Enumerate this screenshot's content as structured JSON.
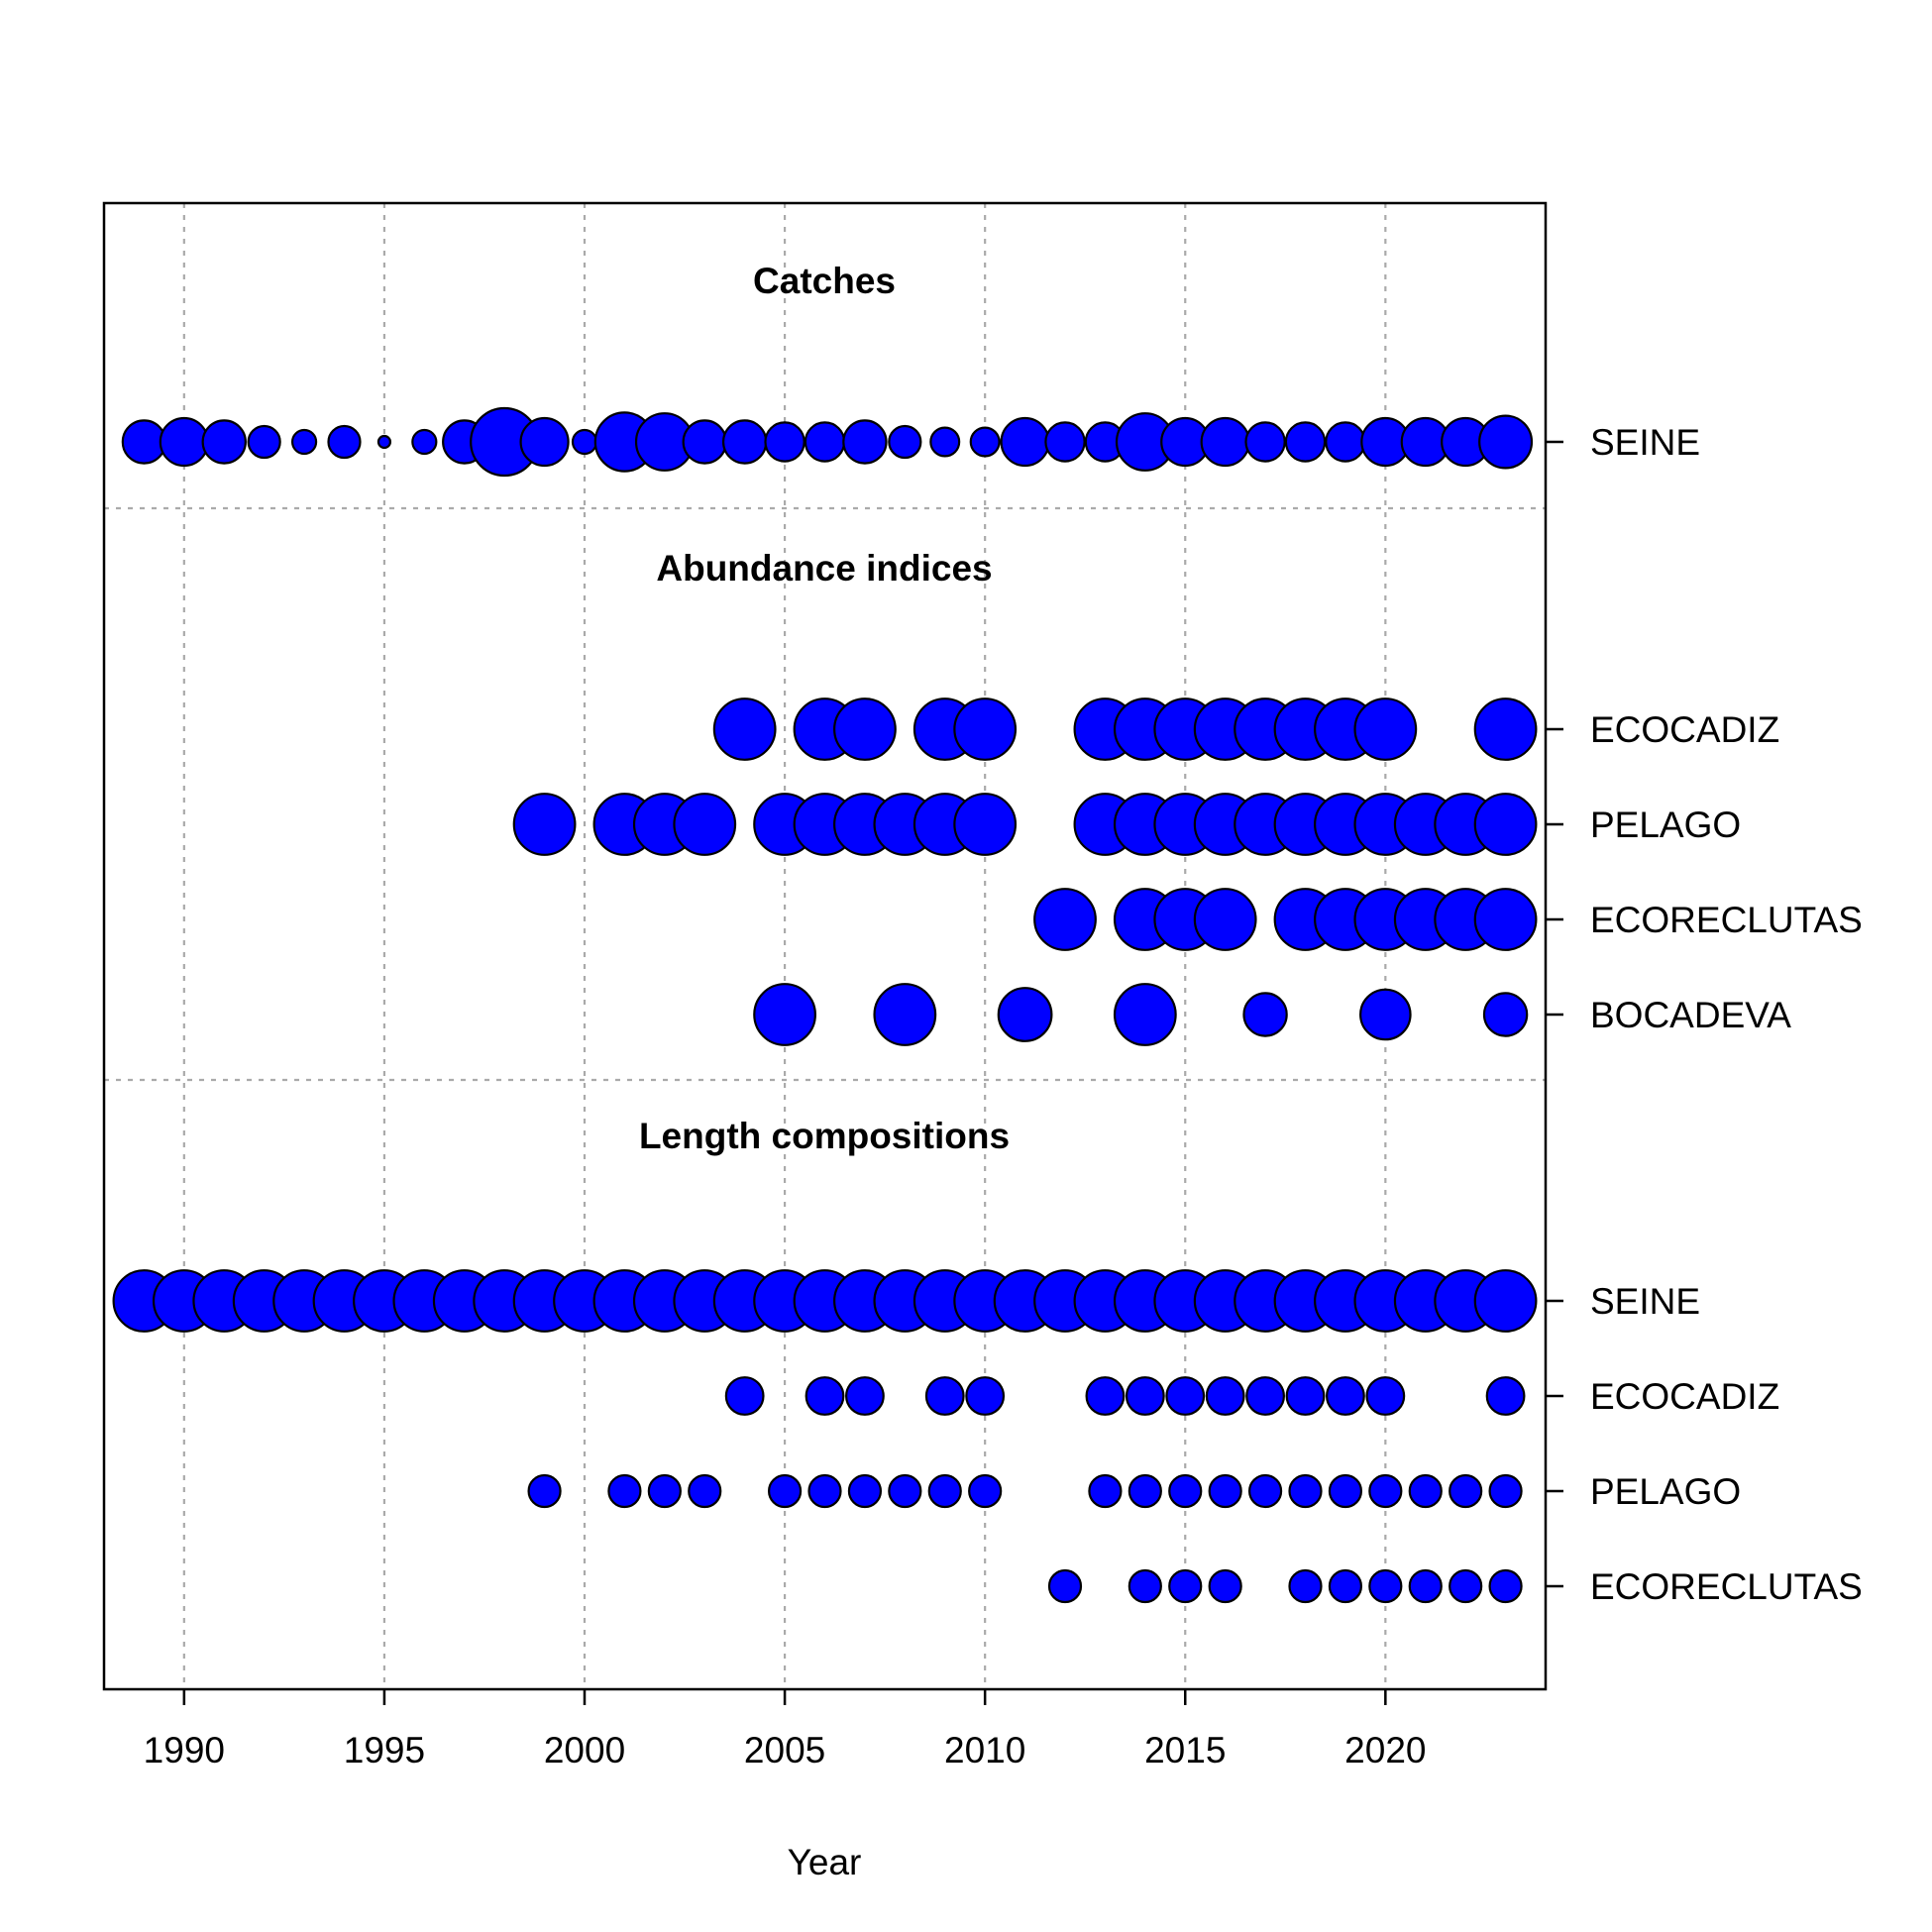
{
  "chart_data": {
    "type": "scatter",
    "xlabel": "Year",
    "xlim": [
      1988,
      2024
    ],
    "x_ticks": [
      1990,
      1995,
      2000,
      2005,
      2010,
      2015,
      2020
    ],
    "grid": true,
    "bubble_color": "#0000FF",
    "panels": [
      {
        "title": "Catches",
        "rows": [
          {
            "label": "SEINE",
            "points": [
              {
                "x": 1989,
                "size": 0.54
              },
              {
                "x": 1990,
                "size": 0.6
              },
              {
                "x": 1991,
                "size": 0.54
              },
              {
                "x": 1992,
                "size": 0.4
              },
              {
                "x": 1993,
                "size": 0.3
              },
              {
                "x": 1994,
                "size": 0.4
              },
              {
                "x": 1995,
                "size": 0.15
              },
              {
                "x": 1996,
                "size": 0.3
              },
              {
                "x": 1997,
                "size": 0.54
              },
              {
                "x": 1998,
                "size": 0.85
              },
              {
                "x": 1999,
                "size": 0.6
              },
              {
                "x": 2000,
                "size": 0.3
              },
              {
                "x": 2001,
                "size": 0.74
              },
              {
                "x": 2002,
                "size": 0.72
              },
              {
                "x": 2003,
                "size": 0.54
              },
              {
                "x": 2004,
                "size": 0.54
              },
              {
                "x": 2005,
                "size": 0.49
              },
              {
                "x": 2006,
                "size": 0.49
              },
              {
                "x": 2007,
                "size": 0.54
              },
              {
                "x": 2008,
                "size": 0.4
              },
              {
                "x": 2009,
                "size": 0.36
              },
              {
                "x": 2010,
                "size": 0.36
              },
              {
                "x": 2011,
                "size": 0.6
              },
              {
                "x": 2012,
                "size": 0.49
              },
              {
                "x": 2013,
                "size": 0.49
              },
              {
                "x": 2014,
                "size": 0.72
              },
              {
                "x": 2015,
                "size": 0.6
              },
              {
                "x": 2016,
                "size": 0.6
              },
              {
                "x": 2017,
                "size": 0.49
              },
              {
                "x": 2018,
                "size": 0.49
              },
              {
                "x": 2019,
                "size": 0.49
              },
              {
                "x": 2020,
                "size": 0.6
              },
              {
                "x": 2021,
                "size": 0.6
              },
              {
                "x": 2022,
                "size": 0.6
              },
              {
                "x": 2023,
                "size": 0.66
              }
            ]
          }
        ]
      },
      {
        "title": "Abundance indices",
        "rows": [
          {
            "label": "ECOCADIZ",
            "points": [
              {
                "x": 2004,
                "size": 0.77
              },
              {
                "x": 2006,
                "size": 0.77
              },
              {
                "x": 2007,
                "size": 0.77
              },
              {
                "x": 2009,
                "size": 0.77
              },
              {
                "x": 2010,
                "size": 0.77
              },
              {
                "x": 2013,
                "size": 0.77
              },
              {
                "x": 2014,
                "size": 0.77
              },
              {
                "x": 2015,
                "size": 0.77
              },
              {
                "x": 2016,
                "size": 0.77
              },
              {
                "x": 2017,
                "size": 0.77
              },
              {
                "x": 2018,
                "size": 0.77
              },
              {
                "x": 2019,
                "size": 0.77
              },
              {
                "x": 2020,
                "size": 0.77
              },
              {
                "x": 2023,
                "size": 0.77
              }
            ]
          },
          {
            "label": "PELAGO",
            "points": [
              {
                "x": 1999,
                "size": 0.77
              },
              {
                "x": 2001,
                "size": 0.77
              },
              {
                "x": 2002,
                "size": 0.77
              },
              {
                "x": 2003,
                "size": 0.77
              },
              {
                "x": 2005,
                "size": 0.77
              },
              {
                "x": 2006,
                "size": 0.77
              },
              {
                "x": 2007,
                "size": 0.77
              },
              {
                "x": 2008,
                "size": 0.77
              },
              {
                "x": 2009,
                "size": 0.77
              },
              {
                "x": 2010,
                "size": 0.77
              },
              {
                "x": 2013,
                "size": 0.77
              },
              {
                "x": 2014,
                "size": 0.77
              },
              {
                "x": 2015,
                "size": 0.77
              },
              {
                "x": 2016,
                "size": 0.77
              },
              {
                "x": 2017,
                "size": 0.77
              },
              {
                "x": 2018,
                "size": 0.77
              },
              {
                "x": 2019,
                "size": 0.77
              },
              {
                "x": 2020,
                "size": 0.77
              },
              {
                "x": 2021,
                "size": 0.77
              },
              {
                "x": 2022,
                "size": 0.77
              },
              {
                "x": 2023,
                "size": 0.77
              }
            ]
          },
          {
            "label": "ECORECLUTAS",
            "points": [
              {
                "x": 2012,
                "size": 0.77
              },
              {
                "x": 2014,
                "size": 0.77
              },
              {
                "x": 2015,
                "size": 0.77
              },
              {
                "x": 2016,
                "size": 0.77
              },
              {
                "x": 2018,
                "size": 0.77
              },
              {
                "x": 2019,
                "size": 0.77
              },
              {
                "x": 2020,
                "size": 0.77
              },
              {
                "x": 2021,
                "size": 0.77
              },
              {
                "x": 2022,
                "size": 0.77
              },
              {
                "x": 2023,
                "size": 0.77
              }
            ]
          },
          {
            "label": "BOCADEVA",
            "points": [
              {
                "x": 2005,
                "size": 0.77
              },
              {
                "x": 2008,
                "size": 0.77
              },
              {
                "x": 2011,
                "size": 0.67
              },
              {
                "x": 2014,
                "size": 0.77
              },
              {
                "x": 2017,
                "size": 0.54
              },
              {
                "x": 2020,
                "size": 0.63
              },
              {
                "x": 2023,
                "size": 0.54
              }
            ]
          }
        ]
      },
      {
        "title": "Length compositions",
        "rows": [
          {
            "label": "SEINE",
            "points": [
              {
                "x": 1989,
                "size": 0.77
              },
              {
                "x": 1990,
                "size": 0.77
              },
              {
                "x": 1991,
                "size": 0.77
              },
              {
                "x": 1992,
                "size": 0.77
              },
              {
                "x": 1993,
                "size": 0.77
              },
              {
                "x": 1994,
                "size": 0.77
              },
              {
                "x": 1995,
                "size": 0.77
              },
              {
                "x": 1996,
                "size": 0.77
              },
              {
                "x": 1997,
                "size": 0.77
              },
              {
                "x": 1998,
                "size": 0.77
              },
              {
                "x": 1999,
                "size": 0.77
              },
              {
                "x": 2000,
                "size": 0.77
              },
              {
                "x": 2001,
                "size": 0.77
              },
              {
                "x": 2002,
                "size": 0.77
              },
              {
                "x": 2003,
                "size": 0.77
              },
              {
                "x": 2004,
                "size": 0.77
              },
              {
                "x": 2005,
                "size": 0.77
              },
              {
                "x": 2006,
                "size": 0.77
              },
              {
                "x": 2007,
                "size": 0.77
              },
              {
                "x": 2008,
                "size": 0.77
              },
              {
                "x": 2009,
                "size": 0.77
              },
              {
                "x": 2010,
                "size": 0.77
              },
              {
                "x": 2011,
                "size": 0.77
              },
              {
                "x": 2012,
                "size": 0.77
              },
              {
                "x": 2013,
                "size": 0.77
              },
              {
                "x": 2014,
                "size": 0.77
              },
              {
                "x": 2015,
                "size": 0.77
              },
              {
                "x": 2016,
                "size": 0.77
              },
              {
                "x": 2017,
                "size": 0.77
              },
              {
                "x": 2018,
                "size": 0.77
              },
              {
                "x": 2019,
                "size": 0.77
              },
              {
                "x": 2020,
                "size": 0.77
              },
              {
                "x": 2021,
                "size": 0.77
              },
              {
                "x": 2022,
                "size": 0.77
              },
              {
                "x": 2023,
                "size": 0.77
              }
            ]
          },
          {
            "label": "ECOCADIZ",
            "points": [
              {
                "x": 2004,
                "size": 0.47
              },
              {
                "x": 2006,
                "size": 0.47
              },
              {
                "x": 2007,
                "size": 0.47
              },
              {
                "x": 2009,
                "size": 0.47
              },
              {
                "x": 2010,
                "size": 0.47
              },
              {
                "x": 2013,
                "size": 0.47
              },
              {
                "x": 2014,
                "size": 0.47
              },
              {
                "x": 2015,
                "size": 0.47
              },
              {
                "x": 2016,
                "size": 0.47
              },
              {
                "x": 2017,
                "size": 0.47
              },
              {
                "x": 2018,
                "size": 0.47
              },
              {
                "x": 2019,
                "size": 0.47
              },
              {
                "x": 2020,
                "size": 0.47
              },
              {
                "x": 2023,
                "size": 0.47
              }
            ]
          },
          {
            "label": "PELAGO",
            "points": [
              {
                "x": 1999,
                "size": 0.4
              },
              {
                "x": 2001,
                "size": 0.4
              },
              {
                "x": 2002,
                "size": 0.4
              },
              {
                "x": 2003,
                "size": 0.4
              },
              {
                "x": 2005,
                "size": 0.4
              },
              {
                "x": 2006,
                "size": 0.4
              },
              {
                "x": 2007,
                "size": 0.4
              },
              {
                "x": 2008,
                "size": 0.4
              },
              {
                "x": 2009,
                "size": 0.4
              },
              {
                "x": 2010,
                "size": 0.4
              },
              {
                "x": 2013,
                "size": 0.4
              },
              {
                "x": 2014,
                "size": 0.4
              },
              {
                "x": 2015,
                "size": 0.4
              },
              {
                "x": 2016,
                "size": 0.4
              },
              {
                "x": 2017,
                "size": 0.4
              },
              {
                "x": 2018,
                "size": 0.4
              },
              {
                "x": 2019,
                "size": 0.4
              },
              {
                "x": 2020,
                "size": 0.4
              },
              {
                "x": 2021,
                "size": 0.4
              },
              {
                "x": 2022,
                "size": 0.4
              },
              {
                "x": 2023,
                "size": 0.4
              }
            ]
          },
          {
            "label": "ECORECLUTAS",
            "points": [
              {
                "x": 2012,
                "size": 0.4
              },
              {
                "x": 2014,
                "size": 0.4
              },
              {
                "x": 2015,
                "size": 0.4
              },
              {
                "x": 2016,
                "size": 0.4
              },
              {
                "x": 2018,
                "size": 0.4
              },
              {
                "x": 2019,
                "size": 0.4
              },
              {
                "x": 2020,
                "size": 0.4
              },
              {
                "x": 2021,
                "size": 0.4
              },
              {
                "x": 2022,
                "size": 0.4
              },
              {
                "x": 2023,
                "size": 0.4
              }
            ]
          }
        ]
      }
    ]
  }
}
